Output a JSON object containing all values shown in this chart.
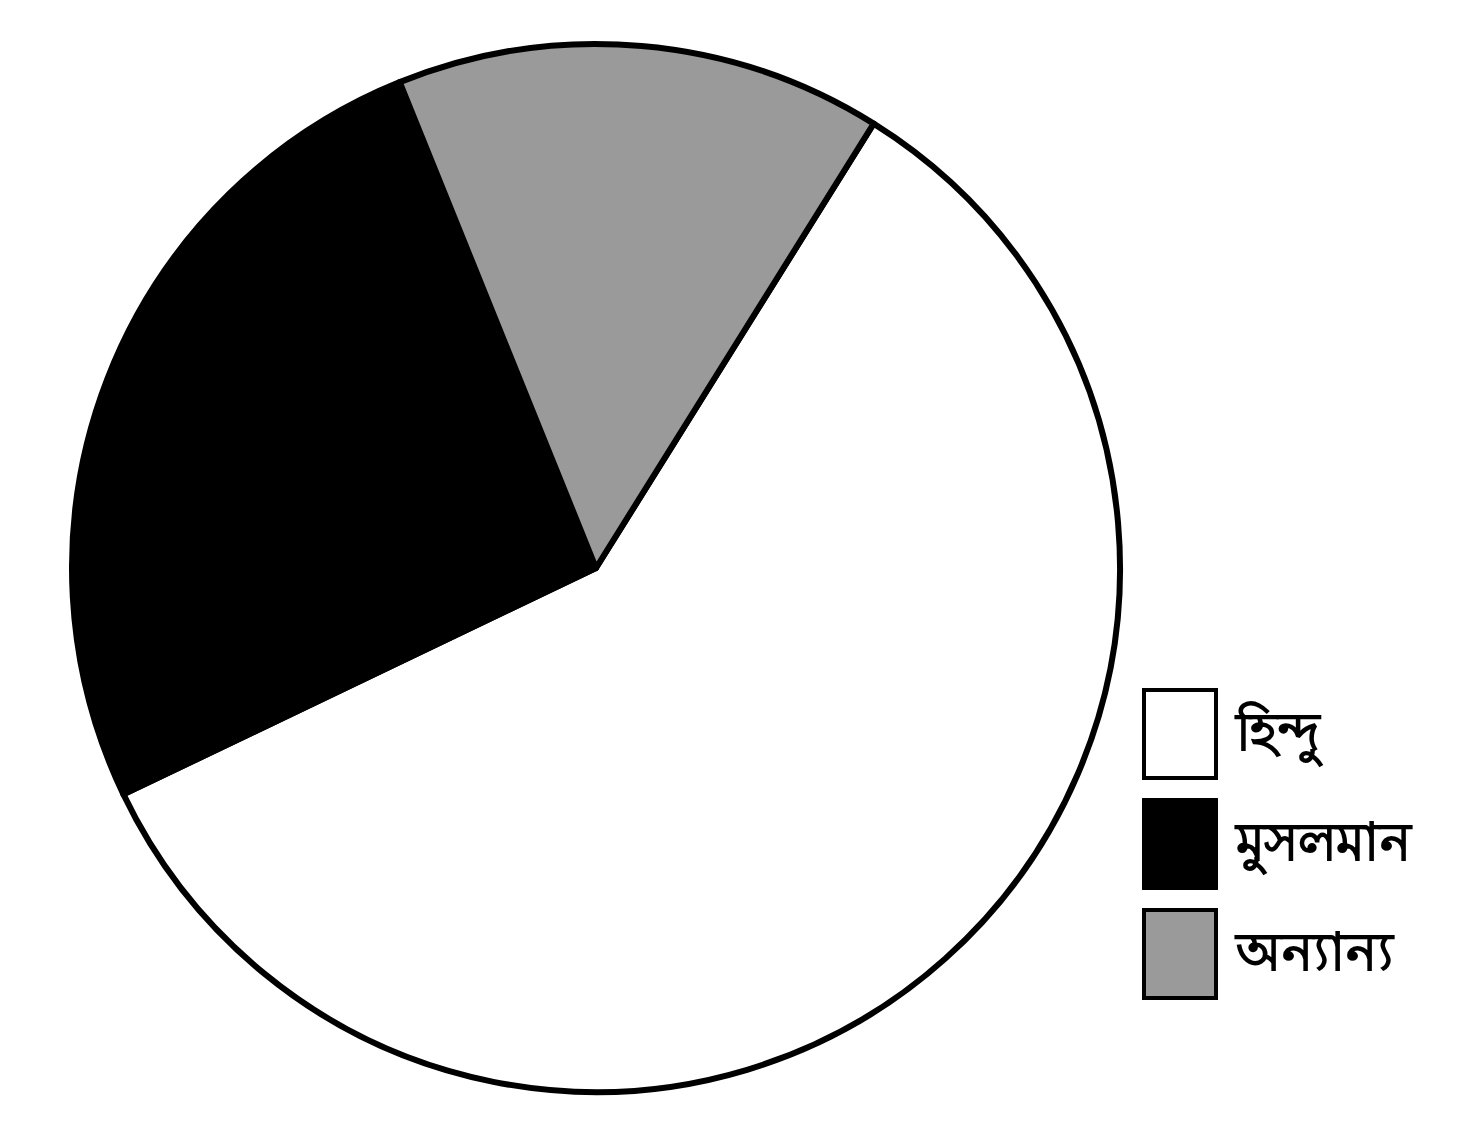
{
  "chart_data": {
    "type": "pie",
    "categories": [
      "হিন্দু",
      "মুসলমান",
      "অন্যান্য"
    ],
    "values": [
      59,
      26,
      15
    ],
    "colors": [
      "#ffffff",
      "#000000",
      "#9a9a9a"
    ],
    "legend": "bottom right"
  }
}
